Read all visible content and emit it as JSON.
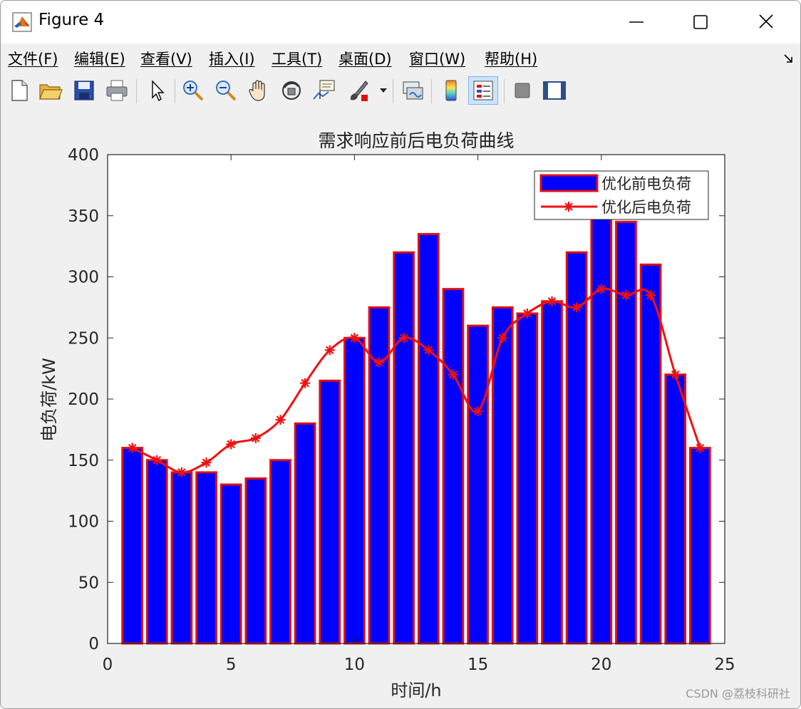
{
  "window": {
    "title": "Figure 4"
  },
  "menu": [
    {
      "label": "文件(F)"
    },
    {
      "label": "编辑(E)"
    },
    {
      "label": "查看(V)"
    },
    {
      "label": "插入(I)"
    },
    {
      "label": "工具(T)"
    },
    {
      "label": "桌面(D)"
    },
    {
      "label": "窗口(W)"
    },
    {
      "label": "帮助(H)"
    }
  ],
  "toolbar": {
    "buttons": [
      "new-figure-icon",
      "open-file-icon",
      "save-icon",
      "print-icon",
      "select-arrow-icon",
      "zoom-in-icon",
      "zoom-out-icon",
      "pan-hand-icon",
      "rotate-3d-icon",
      "data-cursor-icon",
      "brush-icon",
      "brush-dropdown-icon",
      "link-plot-icon",
      "colorbar-icon",
      "legend-icon",
      "hide-plot-tools-icon",
      "show-plot-tools-icon"
    ]
  },
  "colors": {
    "bar_fill": "#0000ff",
    "bar_edge": "#dd1111",
    "line": "#ee1111",
    "background": "#f0f0f0"
  },
  "chart_data": {
    "type": "bar",
    "title": "需求响应前后电负荷曲线",
    "xlabel": "时间/h",
    "ylabel": "电负荷/kW",
    "xlim": [
      0,
      25
    ],
    "ylim": [
      0,
      400
    ],
    "xticks": [
      0,
      5,
      10,
      15,
      20,
      25
    ],
    "yticks": [
      0,
      50,
      100,
      150,
      200,
      250,
      300,
      350,
      400
    ],
    "legend_position": "top-right",
    "x": [
      1,
      2,
      3,
      4,
      5,
      6,
      7,
      8,
      9,
      10,
      11,
      12,
      13,
      14,
      15,
      16,
      17,
      18,
      19,
      20,
      21,
      22,
      23,
      24
    ],
    "series": [
      {
        "name": "优化前电负荷",
        "kind": "bar",
        "values": [
          160,
          150,
          140,
          140,
          130,
          135,
          150,
          180,
          215,
          250,
          275,
          320,
          335,
          290,
          260,
          275,
          270,
          280,
          320,
          350,
          345,
          310,
          220,
          160
        ]
      },
      {
        "name": "优化后电负荷",
        "kind": "line",
        "marker": "asterisk",
        "values": [
          160,
          150,
          140,
          148,
          163,
          168,
          183,
          213,
          240,
          250,
          230,
          250,
          240,
          220,
          190,
          250,
          270,
          280,
          275,
          290,
          285,
          285,
          220,
          160
        ]
      }
    ]
  },
  "watermark": "CSDN @荔枝科研社"
}
